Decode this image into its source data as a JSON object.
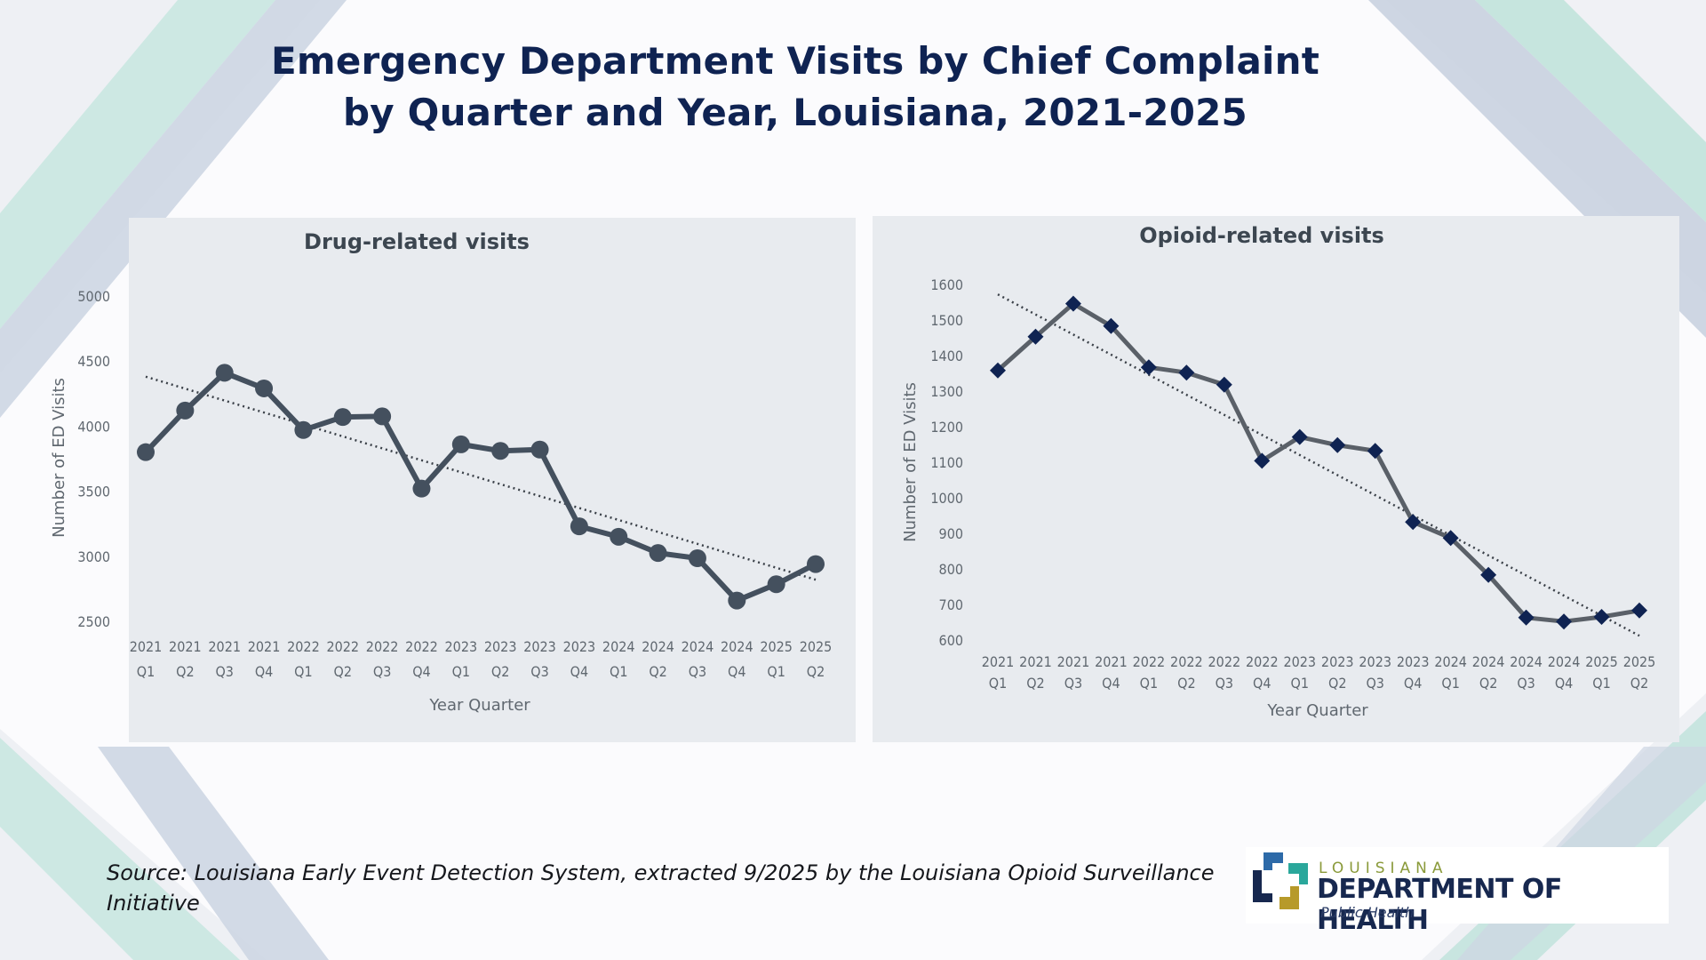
{
  "slide": {
    "title_line1": "Emergency Department Visits by Chief Complaint",
    "title_line2": "by Quarter and Year, Louisiana, 2021-2025",
    "source": "Source: Louisiana Early Event Detection System, extracted 9/2025 by the Louisiana Opioid Surveillance Initiative"
  },
  "logo": {
    "state": "LOUISIANA",
    "name": "DEPARTMENT OF HEALTH",
    "subtitle": "Public Health",
    "colors": {
      "blue": "#2d6aa8",
      "teal": "#2aa79b",
      "navy": "#17284f",
      "gold": "#b79a2a"
    }
  },
  "colors": {
    "title": "#0f2352",
    "drug_line": "#44505e",
    "opioid_line": "#5a6068",
    "opioid_marker": "#0f2352",
    "trend": "#3a4048",
    "panel_bg": "#e8ebef"
  },
  "chart_data": [
    {
      "type": "line",
      "title": "Drug-related visits",
      "xlabel": "Year Quarter",
      "ylabel": "Number of ED Visits",
      "categories": [
        [
          "2021",
          "Q1"
        ],
        [
          "2021",
          "Q2"
        ],
        [
          "2021",
          "Q3"
        ],
        [
          "2021",
          "Q4"
        ],
        [
          "2022",
          "Q1"
        ],
        [
          "2022",
          "Q2"
        ],
        [
          "2022",
          "Q3"
        ],
        [
          "2022",
          "Q4"
        ],
        [
          "2023",
          "Q1"
        ],
        [
          "2023",
          "Q2"
        ],
        [
          "2023",
          "Q3"
        ],
        [
          "2023",
          "Q4"
        ],
        [
          "2024",
          "Q1"
        ],
        [
          "2024",
          "Q2"
        ],
        [
          "2024",
          "Q3"
        ],
        [
          "2024",
          "Q4"
        ],
        [
          "2025",
          "Q1"
        ],
        [
          "2025",
          "Q2"
        ]
      ],
      "series": [
        {
          "name": "Drug-related visits",
          "marker": "circle",
          "values": [
            3800,
            4120,
            4410,
            4290,
            3970,
            4070,
            4075,
            3520,
            3860,
            3810,
            3820,
            3230,
            3150,
            3025,
            2985,
            2660,
            2785,
            2940
          ]
        }
      ],
      "trendline": {
        "type": "linear",
        "style": "dotted",
        "start": 4380,
        "end": 2820
      },
      "yticks": [
        5000,
        4500,
        4000,
        3500,
        3000,
        2500
      ],
      "ylim": [
        2500,
        5000
      ],
      "grid": false,
      "legend": "none"
    },
    {
      "type": "line",
      "title": "Opioid-related visits",
      "xlabel": "Year Quarter",
      "ylabel": "Number of ED Visits",
      "categories": [
        [
          "2021",
          "Q1"
        ],
        [
          "2021",
          "Q2"
        ],
        [
          "2021",
          "Q3"
        ],
        [
          "2021",
          "Q4"
        ],
        [
          "2022",
          "Q1"
        ],
        [
          "2022",
          "Q2"
        ],
        [
          "2022",
          "Q3"
        ],
        [
          "2022",
          "Q4"
        ],
        [
          "2023",
          "Q1"
        ],
        [
          "2023",
          "Q2"
        ],
        [
          "2023",
          "Q3"
        ],
        [
          "2023",
          "Q4"
        ],
        [
          "2024",
          "Q1"
        ],
        [
          "2024",
          "Q2"
        ],
        [
          "2024",
          "Q3"
        ],
        [
          "2024",
          "Q4"
        ],
        [
          "2025",
          "Q1"
        ],
        [
          "2025",
          "Q2"
        ]
      ],
      "series": [
        {
          "name": "Opioid-related visits",
          "marker": "diamond",
          "values": [
            1358,
            1453,
            1546,
            1483,
            1367,
            1352,
            1318,
            1104,
            1171,
            1148,
            1132,
            932,
            887,
            783,
            663,
            652,
            665,
            683
          ]
        }
      ],
      "trendline": {
        "type": "linear",
        "style": "dotted",
        "start": 1572,
        "end": 612
      },
      "yticks": [
        1600,
        1500,
        1400,
        1300,
        1200,
        1100,
        1000,
        900,
        800,
        700,
        600
      ],
      "ylim": [
        600,
        1600
      ],
      "grid": false,
      "legend": "none"
    }
  ]
}
